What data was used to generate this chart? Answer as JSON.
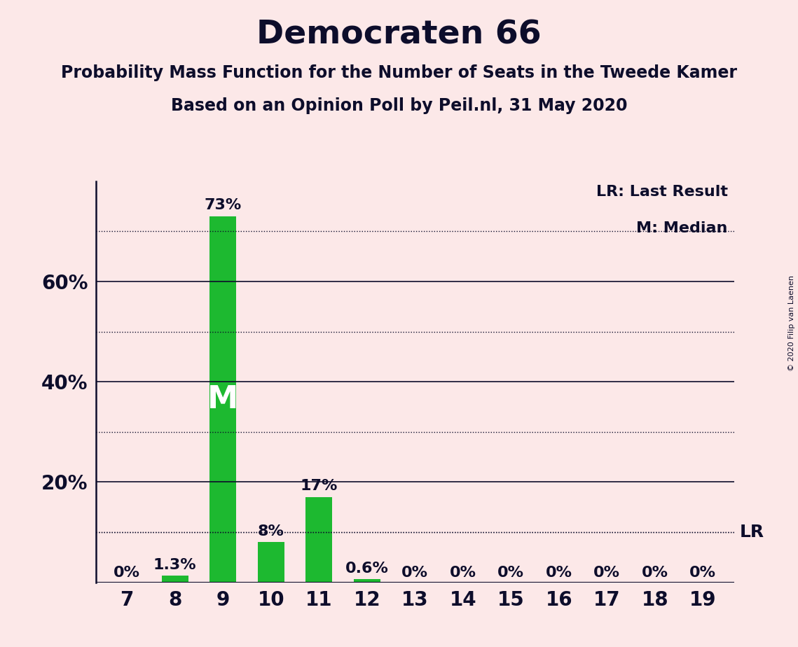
{
  "title": "Democraten 66",
  "subtitle1": "Probability Mass Function for the Number of Seats in the Tweede Kamer",
  "subtitle2": "Based on an Opinion Poll by Peil.nl, 31 May 2020",
  "copyright": "© 2020 Filip van Laenen",
  "seats": [
    7,
    8,
    9,
    10,
    11,
    12,
    13,
    14,
    15,
    16,
    17,
    18,
    19
  ],
  "probabilities": [
    0.0,
    1.3,
    73.0,
    8.0,
    17.0,
    0.6,
    0.0,
    0.0,
    0.0,
    0.0,
    0.0,
    0.0,
    0.0
  ],
  "prob_labels": [
    "0%",
    "1.3%",
    "73%",
    "8%",
    "17%",
    "0.6%",
    "0%",
    "0%",
    "0%",
    "0%",
    "0%",
    "0%",
    "0%"
  ],
  "bar_color": "#1db930",
  "median_seat": 9,
  "lr_seat": 19,
  "lr_value": 10.0,
  "background_color": "#fce8e8",
  "axis_color": "#0d0d2b",
  "yticks": [
    0,
    20,
    40,
    60
  ],
  "ytick_labels": [
    "",
    "20%",
    "40%",
    "60%"
  ],
  "dotted_yticks": [
    10,
    30,
    50,
    70
  ],
  "ylim": [
    0,
    80
  ],
  "title_fontsize": 34,
  "subtitle_fontsize": 17,
  "label_fontsize": 15,
  "tick_fontsize": 20,
  "legend_fontsize": 16,
  "m_fontsize": 32
}
